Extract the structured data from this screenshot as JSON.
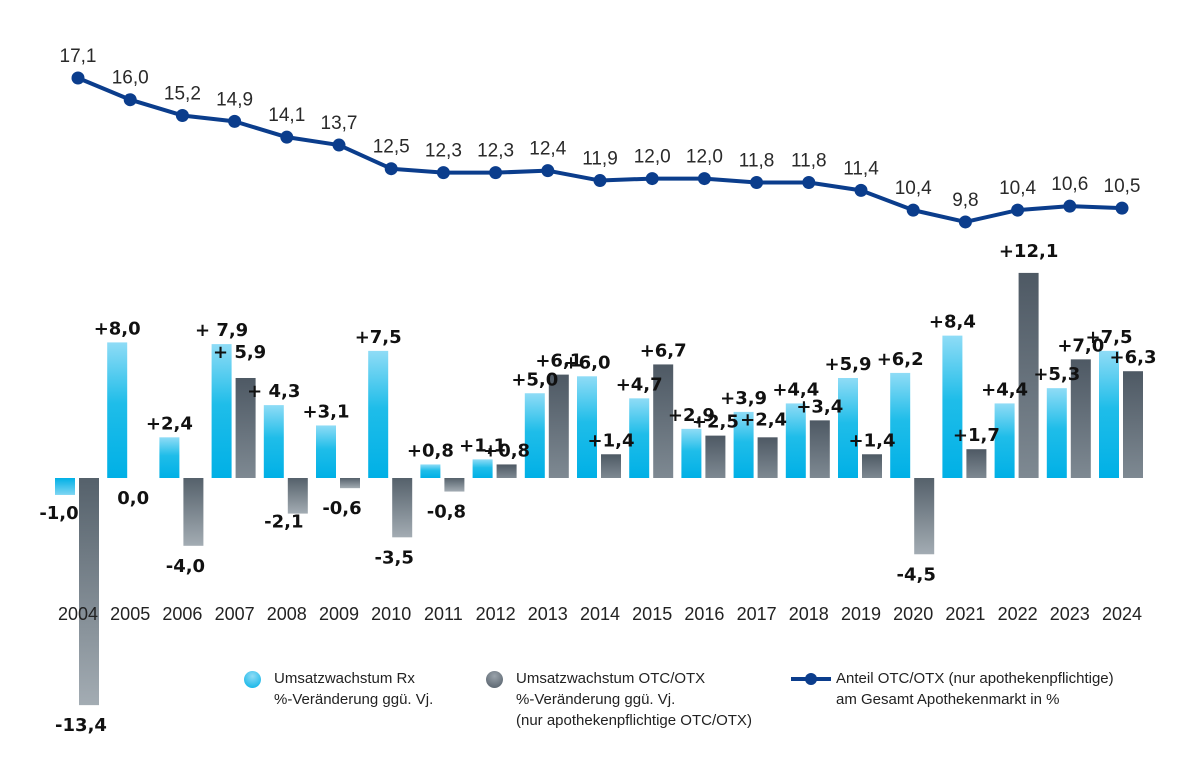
{
  "chart_data": {
    "type": "bar+line",
    "years": [
      "2004",
      "2005",
      "2006",
      "2007",
      "2008",
      "2009",
      "2010",
      "2011",
      "2012",
      "2013",
      "2014",
      "2015",
      "2016",
      "2017",
      "2018",
      "2019",
      "2020",
      "2021",
      "2022",
      "2023",
      "2024"
    ],
    "series": [
      {
        "name": "Umsatzwachstum Rx %-Veränderung ggü. Vj.",
        "type": "bar",
        "values": [
          -1.0,
          8.0,
          2.4,
          7.9,
          4.3,
          3.1,
          7.5,
          0.8,
          1.1,
          5.0,
          6.0,
          4.7,
          2.9,
          3.9,
          4.4,
          5.9,
          6.2,
          8.4,
          4.4,
          5.3,
          7.5
        ],
        "labels": [
          "-1,0",
          "+8,0",
          "+2,4",
          "+ 7,9",
          "+ 4,3",
          "+3,1",
          "+7,5",
          "+0,8",
          "+1,1",
          "+5,0",
          "+6,0",
          "+4,7",
          "+2,9",
          "+3,9",
          "+4,4",
          "+5,9",
          "+6,2",
          "+8,4",
          "+4,4",
          "+5,3",
          "+7,5"
        ]
      },
      {
        "name": "Umsatzwachstum OTC/OTX %-Veränderung ggü. Vj. (nur apothekenpflichtige OTC/OTX)",
        "type": "bar",
        "values": [
          -13.4,
          0.0,
          -4.0,
          5.9,
          -2.1,
          -0.6,
          -3.5,
          -0.8,
          0.8,
          6.1,
          1.4,
          6.7,
          2.5,
          2.4,
          3.4,
          1.4,
          -4.5,
          1.7,
          12.1,
          7.0,
          6.3
        ],
        "labels": [
          "-13,4",
          "0,0",
          "-4,0",
          "+ 5,9",
          "-2,1",
          "-0,6",
          "-3,5",
          "-0,8",
          "+0,8",
          "+6,1",
          "+1,4",
          "+6,7",
          "+2,5",
          "+2,4",
          "+3,4",
          "+1,4",
          "-4,5",
          "+1,7",
          "+12,1",
          "+7,0",
          "+6,3"
        ]
      },
      {
        "name": "Anteil OTC/OTX (nur apothekenpflichtige) am Gesamt Apothekenmarkt in %",
        "type": "line",
        "values": [
          17.1,
          16.0,
          15.2,
          14.9,
          14.1,
          13.7,
          12.5,
          12.3,
          12.3,
          12.4,
          11.9,
          12.0,
          12.0,
          11.8,
          11.8,
          11.4,
          10.4,
          9.8,
          10.4,
          10.6,
          10.5
        ],
        "labels": [
          "17,1",
          "16,0",
          "15,2",
          "14,9",
          "14,1",
          "13,7",
          "12,5",
          "12,3",
          "12,3",
          "12,4",
          "11,9",
          "12,0",
          "12,0",
          "11,8",
          "11,8",
          "11,4",
          "10,4",
          "9,8",
          "10,4",
          "10,6",
          "10,5"
        ]
      }
    ],
    "colors": {
      "rx": "#00b5e8",
      "otc": "#5b6670",
      "line": "#0b3d8c"
    }
  },
  "legend": [
    {
      "line1": "Umsatzwachstum Rx",
      "line2": "%-Veränderung ggü. Vj.",
      "line3": ""
    },
    {
      "line1": "Umsatzwachstum OTC/OTX",
      "line2": "%-Veränderung ggü. Vj.",
      "line3": "(nur apothekenpflichtige OTC/OTX)"
    },
    {
      "line1": "Anteil OTC/OTX (nur apothekenpflichtige)",
      "line2": "am Gesamt Apothekenmarkt in %",
      "line3": ""
    }
  ]
}
